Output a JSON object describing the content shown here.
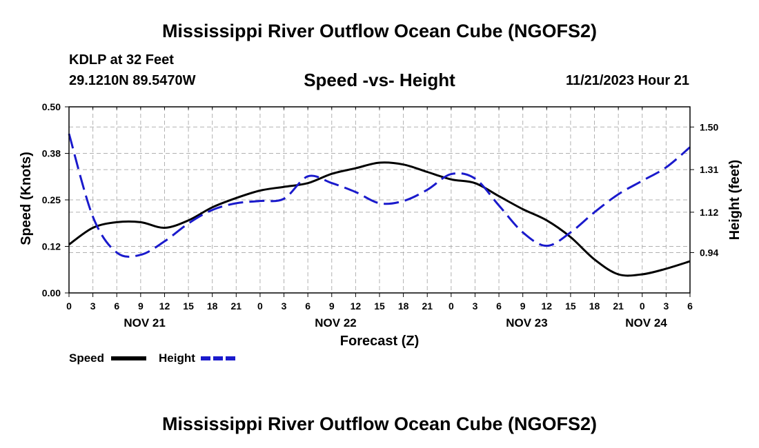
{
  "header": {
    "title": "Mississippi River Outflow Ocean Cube (NGOFS2)",
    "station": "KDLP at 32 Feet",
    "coords": "29.1210N  89.5470W",
    "subtitle": "Speed -vs- Height",
    "datetime": "11/21/2023 Hour 21"
  },
  "footer": {
    "title": "Mississippi River Outflow Ocean Cube (NGOFS2)"
  },
  "chart_data": {
    "type": "line",
    "xlabel": "Forecast (Z)",
    "ylabel_left": "Speed (Knots)",
    "ylabel_right": "Height (feet)",
    "x_range_hours": [
      0,
      78
    ],
    "x_tick_labels": [
      "0",
      "3",
      "6",
      "9",
      "12",
      "15",
      "18",
      "21",
      "0",
      "3",
      "6",
      "9",
      "12",
      "15",
      "18",
      "21",
      "0",
      "3",
      "6",
      "9",
      "12",
      "15",
      "18",
      "21",
      "0",
      "3",
      "6"
    ],
    "date_labels": [
      {
        "text": "NOV 21",
        "hour": 9.5
      },
      {
        "text": "NOV 22",
        "hour": 33.5
      },
      {
        "text": "NOV 23",
        "hour": 57.5
      },
      {
        "text": "NOV 24",
        "hour": 72.5
      }
    ],
    "y_left_range": [
      0,
      0.5
    ],
    "y_left_ticks": [
      "0.00",
      "0.12",
      "0.25",
      "0.38",
      "0.50"
    ],
    "y_right_range": [
      0.76,
      1.59
    ],
    "y_right_ticks": [
      "0.94",
      "1.12",
      "1.31",
      "1.50"
    ],
    "grid": true,
    "legend": [
      {
        "name": "Speed",
        "color": "#000000",
        "style": "solid"
      },
      {
        "name": "Height",
        "color": "#1a1acc",
        "style": "dashed"
      }
    ],
    "series": [
      {
        "name": "Speed",
        "axis": "left",
        "color": "#000000",
        "style": "solid",
        "points": [
          [
            0,
            0.13
          ],
          [
            3,
            0.175
          ],
          [
            6,
            0.19
          ],
          [
            9,
            0.19
          ],
          [
            12,
            0.175
          ],
          [
            15,
            0.195
          ],
          [
            18,
            0.23
          ],
          [
            21,
            0.255
          ],
          [
            24,
            0.275
          ],
          [
            27,
            0.285
          ],
          [
            30,
            0.295
          ],
          [
            33,
            0.32
          ],
          [
            36,
            0.335
          ],
          [
            39,
            0.35
          ],
          [
            42,
            0.345
          ],
          [
            45,
            0.325
          ],
          [
            48,
            0.305
          ],
          [
            51,
            0.295
          ],
          [
            54,
            0.26
          ],
          [
            57,
            0.225
          ],
          [
            60,
            0.195
          ],
          [
            63,
            0.15
          ],
          [
            66,
            0.09
          ],
          [
            69,
            0.05
          ],
          [
            72,
            0.05
          ],
          [
            75,
            0.065
          ],
          [
            78,
            0.085
          ]
        ]
      },
      {
        "name": "Height",
        "axis": "right",
        "color": "#1a1acc",
        "style": "dashed",
        "points": [
          [
            0,
            1.47
          ],
          [
            3,
            1.1
          ],
          [
            6,
            0.94
          ],
          [
            9,
            0.93
          ],
          [
            12,
            0.99
          ],
          [
            15,
            1.07
          ],
          [
            18,
            1.13
          ],
          [
            21,
            1.16
          ],
          [
            24,
            1.17
          ],
          [
            27,
            1.18
          ],
          [
            30,
            1.28
          ],
          [
            33,
            1.25
          ],
          [
            36,
            1.21
          ],
          [
            39,
            1.16
          ],
          [
            42,
            1.17
          ],
          [
            45,
            1.22
          ],
          [
            48,
            1.29
          ],
          [
            51,
            1.27
          ],
          [
            54,
            1.15
          ],
          [
            57,
            1.03
          ],
          [
            60,
            0.97
          ],
          [
            63,
            1.03
          ],
          [
            66,
            1.12
          ],
          [
            69,
            1.2
          ],
          [
            72,
            1.26
          ],
          [
            75,
            1.32
          ],
          [
            78,
            1.41
          ]
        ]
      }
    ]
  }
}
